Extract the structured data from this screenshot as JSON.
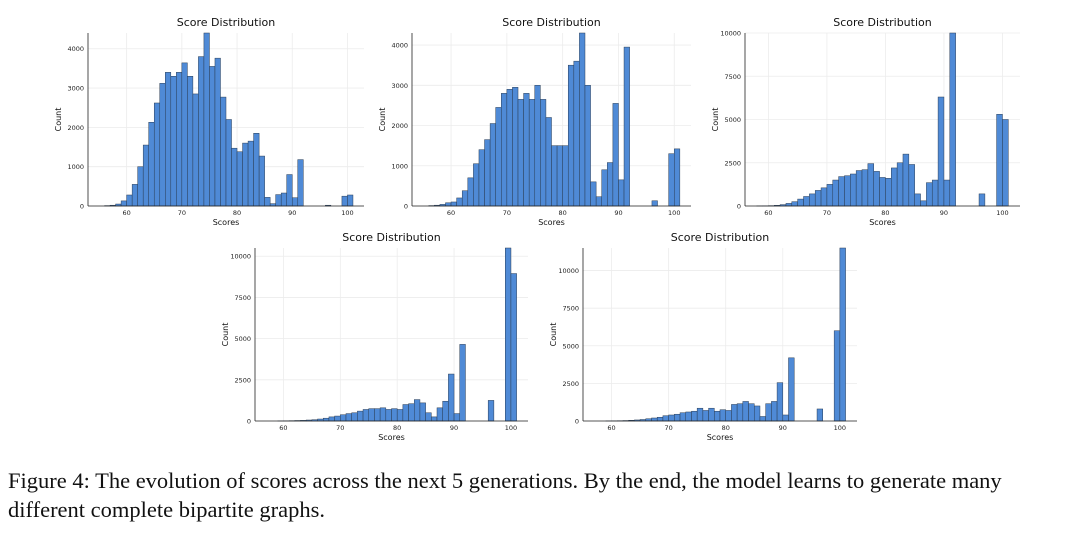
{
  "chart_data": [
    {
      "type": "histogram",
      "title": "Score Distribution",
      "xlabel": "Scores",
      "ylabel": "Count",
      "color": "#4f8ad6",
      "grid": true,
      "bins": [
        56,
        57,
        58,
        59,
        60,
        61,
        62,
        63,
        64,
        65,
        66,
        67,
        68,
        69,
        70,
        71,
        72,
        73,
        74,
        75,
        76,
        77,
        78,
        79,
        80,
        81,
        82,
        83,
        84,
        85,
        86,
        87,
        88,
        89,
        90,
        91,
        92,
        93,
        94,
        95,
        96,
        97,
        98,
        99,
        100,
        101
      ],
      "counts": [
        10,
        20,
        50,
        130,
        280,
        550,
        1000,
        1550,
        2130,
        2620,
        3120,
        3400,
        3300,
        3400,
        3640,
        3300,
        2850,
        3800,
        4400,
        3550,
        3760,
        2770,
        2200,
        1470,
        1380,
        1600,
        1650,
        1850,
        1270,
        220,
        60,
        290,
        330,
        800,
        210,
        1180,
        0,
        0,
        0,
        0,
        20,
        0,
        0,
        250,
        280
      ],
      "xlim": [
        53,
        103
      ],
      "xticks": [
        60,
        70,
        80,
        90,
        100
      ],
      "ylim": [
        0,
        4400
      ],
      "yticks": [
        0,
        1000,
        2000,
        3000,
        4000
      ]
    },
    {
      "type": "histogram",
      "title": "Score Distribution",
      "xlabel": "Scores",
      "ylabel": "Count",
      "color": "#4f8ad6",
      "grid": true,
      "bins": [
        56,
        57,
        58,
        59,
        60,
        61,
        62,
        63,
        64,
        65,
        66,
        67,
        68,
        69,
        70,
        71,
        72,
        73,
        74,
        75,
        76,
        77,
        78,
        79,
        80,
        81,
        82,
        83,
        84,
        85,
        86,
        87,
        88,
        89,
        90,
        91,
        92,
        93,
        94,
        95,
        96,
        97,
        98,
        99,
        100,
        101
      ],
      "counts": [
        10,
        20,
        40,
        80,
        100,
        200,
        380,
        700,
        1050,
        1400,
        1650,
        2050,
        2450,
        2800,
        2900,
        2950,
        2650,
        2800,
        2650,
        3000,
        2650,
        2200,
        1500,
        1500,
        1500,
        3500,
        3600,
        4300,
        3000,
        600,
        230,
        900,
        1080,
        2550,
        650,
        3950,
        0,
        0,
        0,
        0,
        130,
        0,
        0,
        1300,
        1420
      ],
      "xlim": [
        53,
        103
      ],
      "xticks": [
        60,
        70,
        80,
        90,
        100
      ],
      "ylim": [
        0,
        4300
      ],
      "yticks": [
        0,
        1000,
        2000,
        3000,
        4000
      ]
    },
    {
      "type": "histogram",
      "title": "Score Distribution",
      "xlabel": "Scores",
      "ylabel": "Count",
      "color": "#4f8ad6",
      "grid": true,
      "bins": [
        56,
        57,
        58,
        59,
        60,
        61,
        62,
        63,
        64,
        65,
        66,
        67,
        68,
        69,
        70,
        71,
        72,
        73,
        74,
        75,
        76,
        77,
        78,
        79,
        80,
        81,
        82,
        83,
        84,
        85,
        86,
        87,
        88,
        89,
        90,
        91,
        92,
        93,
        94,
        95,
        96,
        97,
        98,
        99,
        100,
        101
      ],
      "counts": [
        0,
        0,
        5,
        10,
        20,
        40,
        80,
        150,
        250,
        400,
        550,
        700,
        900,
        1050,
        1250,
        1500,
        1700,
        1750,
        1850,
        2050,
        2100,
        2450,
        2000,
        1650,
        1600,
        2200,
        2500,
        3000,
        2400,
        700,
        300,
        1350,
        1500,
        6300,
        1500,
        10000,
        0,
        0,
        0,
        0,
        700,
        0,
        0,
        5300,
        5000
      ],
      "xlim": [
        56,
        103
      ],
      "xticks": [
        60,
        70,
        80,
        90,
        100
      ],
      "ylim": [
        0,
        10000
      ],
      "yticks": [
        0,
        2500,
        5000,
        7500,
        10000
      ]
    },
    {
      "type": "histogram",
      "title": "Score Distribution",
      "xlabel": "Scores",
      "ylabel": "Count",
      "color": "#4f8ad6",
      "grid": true,
      "bins": [
        56,
        57,
        58,
        59,
        60,
        61,
        62,
        63,
        64,
        65,
        66,
        67,
        68,
        69,
        70,
        71,
        72,
        73,
        74,
        75,
        76,
        77,
        78,
        79,
        80,
        81,
        82,
        83,
        84,
        85,
        86,
        87,
        88,
        89,
        90,
        91,
        92,
        93,
        94,
        95,
        96,
        97,
        98,
        99,
        100,
        101
      ],
      "counts": [
        0,
        0,
        0,
        5,
        10,
        20,
        30,
        40,
        60,
        80,
        120,
        170,
        250,
        300,
        380,
        450,
        500,
        600,
        700,
        750,
        750,
        800,
        700,
        750,
        700,
        1000,
        1050,
        1300,
        1100,
        500,
        250,
        800,
        1200,
        2850,
        450,
        4650,
        0,
        0,
        0,
        0,
        1250,
        0,
        0,
        10500,
        8950
      ],
      "xlim": [
        55,
        103
      ],
      "xticks": [
        60,
        70,
        80,
        90,
        100
      ],
      "ylim": [
        0,
        10500
      ],
      "yticks": [
        0,
        2500,
        5000,
        7500,
        10000
      ]
    },
    {
      "type": "histogram",
      "title": "Score Distribution",
      "xlabel": "Scores",
      "ylabel": "Count",
      "color": "#4f8ad6",
      "grid": true,
      "bins": [
        56,
        57,
        58,
        59,
        60,
        61,
        62,
        63,
        64,
        65,
        66,
        67,
        68,
        69,
        70,
        71,
        72,
        73,
        74,
        75,
        76,
        77,
        78,
        79,
        80,
        81,
        82,
        83,
        84,
        85,
        86,
        87,
        88,
        89,
        90,
        91,
        92,
        93,
        94,
        95,
        96,
        97,
        98,
        99,
        100,
        101
      ],
      "counts": [
        0,
        0,
        0,
        5,
        10,
        20,
        30,
        50,
        70,
        100,
        150,
        200,
        250,
        350,
        400,
        450,
        550,
        600,
        650,
        850,
        700,
        850,
        650,
        750,
        700,
        1100,
        1150,
        1300,
        1150,
        1000,
        300,
        1150,
        1300,
        2550,
        400,
        4200,
        0,
        0,
        0,
        0,
        800,
        0,
        0,
        6000,
        11500
      ],
      "xlim": [
        55,
        103
      ],
      "xticks": [
        60,
        70,
        80,
        90,
        100
      ],
      "ylim": [
        0,
        11500
      ],
      "yticks": [
        0,
        2500,
        5000,
        7500,
        10000
      ]
    }
  ],
  "caption": "Figure 4: The evolution of scores across the next 5 generations. By the end, the model learns to generate many different complete bipartite graphs."
}
